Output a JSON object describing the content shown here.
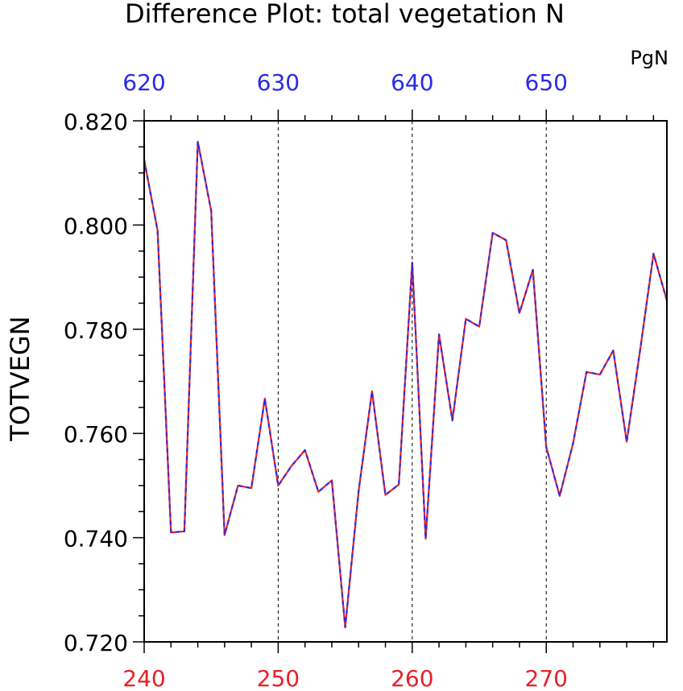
{
  "chart_data": {
    "type": "line",
    "title": "Difference Plot: total vegetation N",
    "units_label": "PgN",
    "ylabel": "TOTVEGN",
    "xlabel": "",
    "xlim": [
      240,
      279
    ],
    "ylim": [
      0.72,
      0.82
    ],
    "x_ticks_bottom": [
      "240",
      "250",
      "260",
      "270"
    ],
    "x_ticks_top": [
      "620",
      "630",
      "640",
      "650"
    ],
    "y_ticks": [
      "0.720",
      "0.740",
      "0.760",
      "0.780",
      "0.800",
      "0.820"
    ],
    "grid": "vertical dashed at major x ticks",
    "colors": {
      "bottom_axis_labels": "#e8202a",
      "top_axis_labels": "#2a2ae8",
      "series_a": "#e8202a",
      "series_b": "#2a2ae8",
      "axis": "#000000",
      "text": "#000000"
    },
    "x": [
      240,
      241,
      242,
      243,
      244,
      245,
      246,
      247,
      248,
      249,
      250,
      251,
      252,
      253,
      254,
      255,
      256,
      257,
      258,
      259,
      260,
      261,
      262,
      263,
      264,
      265,
      266,
      267,
      268,
      269,
      270,
      271,
      272,
      273,
      274,
      275,
      276,
      277,
      278,
      279
    ],
    "series": [
      {
        "values": [
          0.8125,
          0.799,
          0.741,
          0.7412,
          0.816,
          0.8027,
          0.7405,
          0.75,
          0.7495,
          0.7667,
          0.75,
          0.7538,
          0.7568,
          0.7488,
          0.751,
          0.7228,
          0.749,
          0.7681,
          0.7482,
          0.7502,
          0.7928,
          0.7398,
          0.779,
          0.7625,
          0.782,
          0.7805,
          0.7985,
          0.7971,
          0.7831,
          0.7914,
          0.7574,
          0.748,
          0.7581,
          0.7718,
          0.7713,
          0.7759,
          0.7584,
          0.7759,
          0.7945,
          0.7855
        ]
      },
      {
        "values": [
          0.8125,
          0.799,
          0.741,
          0.7412,
          0.816,
          0.8027,
          0.7405,
          0.75,
          0.7495,
          0.7667,
          0.75,
          0.7538,
          0.7568,
          0.7488,
          0.751,
          0.7228,
          0.749,
          0.7681,
          0.7482,
          0.7502,
          0.7928,
          0.7398,
          0.779,
          0.7625,
          0.782,
          0.7805,
          0.7985,
          0.7971,
          0.7831,
          0.7914,
          0.7574,
          0.748,
          0.7581,
          0.7718,
          0.7713,
          0.7759,
          0.7584,
          0.7759,
          0.7945,
          0.7855
        ]
      }
    ]
  }
}
